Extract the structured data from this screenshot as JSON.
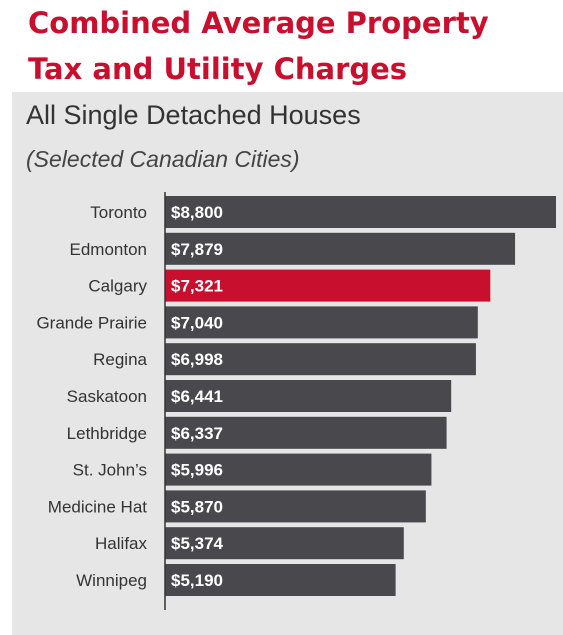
{
  "header": {
    "title_line1": "Combined Average Property",
    "title_line2": "Tax and Utility Charges",
    "subtitle": "All Single Detached Houses",
    "note": "(Selected Canadian Cities)"
  },
  "colors": {
    "bar": "#48484d",
    "highlight": "#c8102e",
    "panel": "#e6e6e6",
    "title": "#c8102e"
  },
  "chart_data": {
    "type": "bar",
    "orientation": "horizontal",
    "title": "All Single Detached Houses",
    "subtitle": "(Selected Canadian Cities)",
    "categories": [
      "Toronto",
      "Edmonton",
      "Calgary",
      "Grande Prairie",
      "Regina",
      "Saskatoon",
      "Lethbridge",
      "St. John’s",
      "Medicine Hat",
      "Halifax",
      "Winnipeg"
    ],
    "values": [
      8800,
      7879,
      7321,
      7040,
      6998,
      6441,
      6337,
      5996,
      5870,
      5374,
      5190
    ],
    "value_labels": [
      "$8,800",
      "$7,879",
      "$7,321",
      "$7,040",
      "$6,998",
      "$6,441",
      "$6,337",
      "$5,996",
      "$5,870",
      "$5,374",
      "$5,190"
    ],
    "highlight_category": "Calgary",
    "xlim": [
      0,
      8800
    ],
    "grid": false,
    "xlabel": "",
    "ylabel": ""
  }
}
